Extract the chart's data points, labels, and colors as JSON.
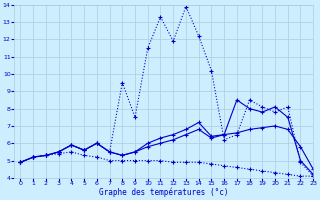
{
  "xlabel": "Graphe des températures (°c)",
  "bg_color": "#cceeff",
  "grid_color": "#aaccdd",
  "line_color": "#0000cc",
  "xlim": [
    -0.5,
    23
  ],
  "ylim": [
    4,
    14
  ],
  "xticks": [
    0,
    1,
    2,
    3,
    4,
    5,
    6,
    7,
    8,
    9,
    10,
    11,
    12,
    13,
    14,
    15,
    16,
    17,
    18,
    19,
    20,
    21,
    22,
    23
  ],
  "yticks": [
    4,
    5,
    6,
    7,
    8,
    9,
    10,
    11,
    12,
    13,
    14
  ],
  "series": [
    {
      "x": [
        0,
        1,
        2,
        3,
        4,
        5,
        6,
        7,
        8,
        9,
        10,
        11,
        12,
        13,
        14,
        15,
        16,
        17,
        18,
        19,
        20,
        21,
        22,
        23
      ],
      "y": [
        4.9,
        5.2,
        5.3,
        5.4,
        5.5,
        5.3,
        5.2,
        5.0,
        5.0,
        5.0,
        5.0,
        5.0,
        4.9,
        4.9,
        4.9,
        4.8,
        4.7,
        4.6,
        4.5,
        4.4,
        4.3,
        4.2,
        4.1,
        4.1
      ],
      "linestyle": "dotted",
      "marker": true
    },
    {
      "x": [
        0,
        1,
        2,
        3,
        4,
        5,
        6,
        7,
        8,
        9,
        10,
        11,
        12,
        13,
        14,
        15,
        16,
        17,
        18,
        19,
        20,
        21,
        22,
        23
      ],
      "y": [
        4.9,
        5.2,
        5.3,
        5.5,
        5.9,
        5.6,
        6.0,
        5.5,
        5.3,
        5.5,
        5.8,
        6.0,
        6.2,
        6.5,
        6.8,
        6.3,
        6.5,
        6.6,
        6.8,
        6.9,
        7.0,
        6.8,
        5.8,
        4.5
      ],
      "linestyle": "solid",
      "marker": true
    },
    {
      "x": [
        0,
        1,
        2,
        3,
        4,
        5,
        6,
        7,
        8,
        9,
        10,
        11,
        12,
        13,
        14,
        15,
        16,
        17,
        18,
        19,
        20,
        21,
        22,
        23
      ],
      "y": [
        4.9,
        5.2,
        5.3,
        5.5,
        5.9,
        5.6,
        6.0,
        5.5,
        5.3,
        5.5,
        6.0,
        6.3,
        6.5,
        6.8,
        7.2,
        6.4,
        6.5,
        8.5,
        8.0,
        7.8,
        8.1,
        7.5,
        5.0,
        4.2
      ],
      "linestyle": "solid",
      "marker": true
    },
    {
      "x": [
        0,
        1,
        2,
        3,
        4,
        5,
        6,
        7,
        8,
        9,
        10,
        11,
        12,
        13,
        14,
        15,
        16,
        17,
        18,
        19,
        20,
        21,
        22,
        23
      ],
      "y": [
        4.9,
        5.2,
        5.3,
        5.5,
        5.9,
        5.6,
        6.0,
        5.5,
        9.5,
        7.5,
        11.5,
        13.3,
        11.9,
        13.9,
        12.2,
        10.2,
        6.2,
        6.5,
        8.5,
        8.1,
        7.8,
        8.1,
        4.9,
        4.1
      ],
      "linestyle": "dotted",
      "marker": true
    }
  ]
}
